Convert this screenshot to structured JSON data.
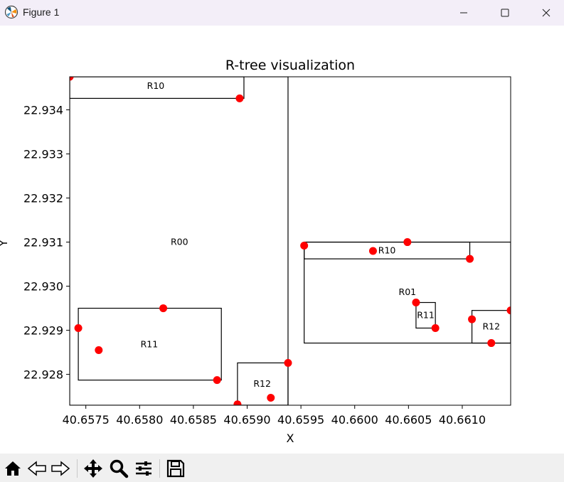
{
  "window": {
    "title": "Figure 1",
    "controls": [
      "minimize",
      "maximize",
      "close"
    ]
  },
  "toolbar": {
    "tools": [
      "home-icon",
      "back-icon",
      "forward-icon",
      "pan-icon",
      "zoom-icon",
      "configure-subplots-icon",
      "save-icon"
    ]
  },
  "chart_data": {
    "type": "scatter",
    "title": "R-tree visualization",
    "xlabel": "X",
    "ylabel": "Y",
    "xlim": [
      40.65735,
      40.66145
    ],
    "ylim": [
      22.9273,
      22.93475
    ],
    "xticks": [
      40.6575,
      40.658,
      40.6585,
      40.659,
      40.6595,
      40.66,
      40.6605,
      40.661
    ],
    "xtick_labels": [
      "40.6575",
      "40.6580",
      "40.6585",
      "40.6590",
      "40.6595",
      "40.6600",
      "40.6605",
      "40.6610"
    ],
    "yticks": [
      22.928,
      22.929,
      22.93,
      22.931,
      22.932,
      22.933,
      22.934
    ],
    "ytick_labels": [
      "22.928",
      "22.929",
      "22.930",
      "22.931",
      "22.932",
      "22.933",
      "22.934"
    ],
    "point_color": "#ff0000",
    "rect_color": "#000000",
    "points": [
      {
        "x": 40.65735,
        "y": 22.93475
      },
      {
        "x": 40.65893,
        "y": 22.93426
      },
      {
        "x": 40.65743,
        "y": 22.92905
      },
      {
        "x": 40.65762,
        "y": 22.92855
      },
      {
        "x": 40.65822,
        "y": 22.9295
      },
      {
        "x": 40.65872,
        "y": 22.92787
      },
      {
        "x": 40.65891,
        "y": 22.92732
      },
      {
        "x": 40.65922,
        "y": 22.92747
      },
      {
        "x": 40.65938,
        "y": 22.92826
      },
      {
        "x": 40.65953,
        "y": 22.93092
      },
      {
        "x": 40.66017,
        "y": 22.9308
      },
      {
        "x": 40.66049,
        "y": 22.931
      },
      {
        "x": 40.66107,
        "y": 22.93062
      },
      {
        "x": 40.66057,
        "y": 22.92963
      },
      {
        "x": 40.66075,
        "y": 22.92905
      },
      {
        "x": 40.66109,
        "y": 22.92925
      },
      {
        "x": 40.66127,
        "y": 22.92871
      },
      {
        "x": 40.66145,
        "y": 22.92945
      }
    ],
    "rectangles": [
      {
        "label": "R00",
        "x0": 40.65735,
        "y0": 22.9273,
        "x1": 40.65938,
        "y1": 22.93475,
        "label_x": 40.65837,
        "label_y": 22.931
      },
      {
        "label": "R10",
        "x0": 40.65735,
        "y0": 22.93426,
        "x1": 40.65897,
        "y1": 22.93475,
        "label_x": 40.65815,
        "label_y": 22.93454
      },
      {
        "label": "R11",
        "x0": 40.65743,
        "y0": 22.92787,
        "x1": 40.65876,
        "y1": 22.9295,
        "label_x": 40.65809,
        "label_y": 22.92868
      },
      {
        "label": "R12",
        "x0": 40.65891,
        "y0": 22.9273,
        "x1": 40.65938,
        "y1": 22.92826,
        "label_x": 40.65914,
        "label_y": 22.92778
      },
      {
        "label": "R01",
        "x0": 40.65953,
        "y0": 22.92871,
        "x1": 40.66145,
        "y1": 22.931,
        "label_x": 40.66049,
        "label_y": 22.92986
      },
      {
        "label": "R10",
        "x0": 40.65953,
        "y0": 22.93062,
        "x1": 40.66107,
        "y1": 22.931,
        "label_x": 40.6603,
        "label_y": 22.93081
      },
      {
        "label": "R11",
        "x0": 40.66057,
        "y0": 22.92905,
        "x1": 40.66075,
        "y1": 22.92963,
        "label_x": 40.66066,
        "label_y": 22.92934
      },
      {
        "label": "R12",
        "x0": 40.66109,
        "y0": 22.92871,
        "x1": 40.66145,
        "y1": 22.92945,
        "label_x": 40.66127,
        "label_y": 22.92908
      }
    ]
  }
}
